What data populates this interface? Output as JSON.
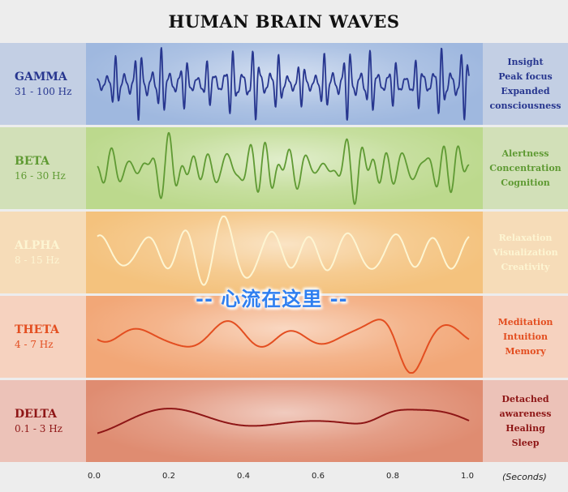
{
  "title": "HUMAN BRAIN WAVES",
  "bands": [
    {
      "name": "GAMMA",
      "freq": "31 - 100 Hz",
      "traits": [
        "Insight",
        "Peak focus",
        "Expanded",
        "consciousness"
      ],
      "color": "#27368f",
      "left_bg": "#c3cfe4",
      "right_bg": "#c3cfe4",
      "center_bg": "#9fb8df"
    },
    {
      "name": "BETA",
      "freq": "16 - 30 Hz",
      "traits": [
        "Alertness",
        "Concentration",
        "Cognition"
      ],
      "color": "#5f9a33",
      "left_bg": "#d2e0b8",
      "right_bg": "#d2e0b8",
      "center_bg": "#bcd98d"
    },
    {
      "name": "ALPHA",
      "freq": "8 - 15 Hz",
      "traits": [
        "Relaxation",
        "Visualization",
        "Creativity"
      ],
      "color": "#fdf5d2",
      "left_bg": "#f6dcb8",
      "right_bg": "#f6dcb8",
      "center_bg": "#f4c27d"
    },
    {
      "name": "THETA",
      "freq": "4 - 7 Hz",
      "traits": [
        "Meditation",
        "Intuition",
        "Memory"
      ],
      "color": "#e34e20",
      "left_bg": "#f6d2bf",
      "right_bg": "#f6d2bf",
      "center_bg": "#f2a777"
    },
    {
      "name": "DELTA",
      "freq": "0.1 - 3 Hz",
      "traits": [
        "Detached",
        "awareness",
        "Healing",
        "Sleep"
      ],
      "color": "#8e1616",
      "left_bg": "#ecc2b8",
      "right_bg": "#ecc2b8",
      "center_bg": "#df8c71"
    }
  ],
  "overlay_text": "-- 心流在这里 --",
  "axis": {
    "ticks": [
      "0.0",
      "0.2",
      "0.4",
      "0.6",
      "0.8",
      "1.0"
    ],
    "unit": "(Seconds)"
  }
}
